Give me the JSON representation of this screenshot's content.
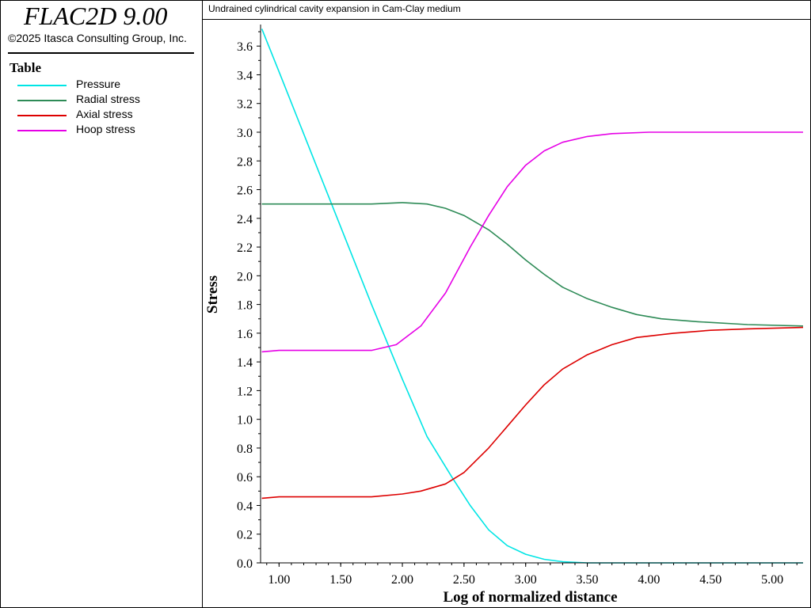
{
  "app": {
    "title": "FLAC2D 9.00",
    "copyright": "©2025 Itasca Consulting Group, Inc."
  },
  "legend": {
    "title": "Table",
    "items": [
      {
        "label": "Pressure",
        "color": "#00e5e5"
      },
      {
        "label": "Radial stress",
        "color": "#2e8b57"
      },
      {
        "label": "Axial stress",
        "color": "#dd0000"
      },
      {
        "label": "Hoop stress",
        "color": "#e600e6"
      }
    ]
  },
  "chart_data": {
    "type": "line",
    "title": "Undrained cylindrical cavity expansion in Cam-Clay medium",
    "xlabel": "Log of normalized distance",
    "ylabel": "Stress",
    "xlim": [
      0.85,
      5.25
    ],
    "ylim": [
      0.0,
      3.75
    ],
    "xticks": [
      "1.00",
      "1.50",
      "2.00",
      "2.50",
      "3.00",
      "3.50",
      "4.00",
      "4.50",
      "5.00"
    ],
    "yticks": [
      "0.0",
      "0.2",
      "0.4",
      "0.6",
      "0.8",
      "1.0",
      "1.2",
      "1.4",
      "1.6",
      "1.8",
      "2.0",
      "2.2",
      "2.4",
      "2.6",
      "2.8",
      "3.0",
      "3.2",
      "3.4",
      "3.6"
    ],
    "grid": false,
    "series": [
      {
        "name": "Pressure",
        "color": "#00e5e5",
        "points": [
          [
            0.86,
            3.72
          ],
          [
            1.0,
            3.42
          ],
          [
            1.25,
            2.88
          ],
          [
            1.5,
            2.34
          ],
          [
            1.75,
            1.8
          ],
          [
            2.0,
            1.28
          ],
          [
            2.2,
            0.88
          ],
          [
            2.4,
            0.6
          ],
          [
            2.55,
            0.4
          ],
          [
            2.7,
            0.23
          ],
          [
            2.85,
            0.12
          ],
          [
            3.0,
            0.06
          ],
          [
            3.15,
            0.025
          ],
          [
            3.3,
            0.008
          ],
          [
            3.5,
            0.0
          ],
          [
            4.0,
            0.0
          ],
          [
            4.5,
            0.0
          ],
          [
            5.25,
            0.0
          ]
        ]
      },
      {
        "name": "Radial stress",
        "color": "#2e8b57",
        "points": [
          [
            0.86,
            2.5
          ],
          [
            1.0,
            2.5
          ],
          [
            1.25,
            2.5
          ],
          [
            1.5,
            2.5
          ],
          [
            1.75,
            2.5
          ],
          [
            2.0,
            2.51
          ],
          [
            2.2,
            2.5
          ],
          [
            2.35,
            2.47
          ],
          [
            2.5,
            2.42
          ],
          [
            2.7,
            2.32
          ],
          [
            2.85,
            2.22
          ],
          [
            3.0,
            2.11
          ],
          [
            3.15,
            2.01
          ],
          [
            3.3,
            1.92
          ],
          [
            3.5,
            1.84
          ],
          [
            3.7,
            1.78
          ],
          [
            3.9,
            1.73
          ],
          [
            4.1,
            1.7
          ],
          [
            4.4,
            1.68
          ],
          [
            4.8,
            1.66
          ],
          [
            5.25,
            1.65
          ]
        ]
      },
      {
        "name": "Axial stress",
        "color": "#dd0000",
        "points": [
          [
            0.86,
            0.45
          ],
          [
            1.0,
            0.46
          ],
          [
            1.25,
            0.46
          ],
          [
            1.5,
            0.46
          ],
          [
            1.75,
            0.46
          ],
          [
            2.0,
            0.48
          ],
          [
            2.15,
            0.5
          ],
          [
            2.35,
            0.55
          ],
          [
            2.5,
            0.63
          ],
          [
            2.7,
            0.8
          ],
          [
            2.85,
            0.95
          ],
          [
            3.0,
            1.1
          ],
          [
            3.15,
            1.24
          ],
          [
            3.3,
            1.35
          ],
          [
            3.5,
            1.45
          ],
          [
            3.7,
            1.52
          ],
          [
            3.9,
            1.57
          ],
          [
            4.2,
            1.6
          ],
          [
            4.5,
            1.62
          ],
          [
            4.8,
            1.63
          ],
          [
            5.25,
            1.64
          ]
        ]
      },
      {
        "name": "Hoop stress",
        "color": "#e600e6",
        "points": [
          [
            0.86,
            1.47
          ],
          [
            1.0,
            1.48
          ],
          [
            1.25,
            1.48
          ],
          [
            1.5,
            1.48
          ],
          [
            1.75,
            1.48
          ],
          [
            1.95,
            1.52
          ],
          [
            2.15,
            1.65
          ],
          [
            2.35,
            1.88
          ],
          [
            2.55,
            2.2
          ],
          [
            2.7,
            2.42
          ],
          [
            2.85,
            2.62
          ],
          [
            3.0,
            2.77
          ],
          [
            3.15,
            2.87
          ],
          [
            3.3,
            2.93
          ],
          [
            3.5,
            2.97
          ],
          [
            3.7,
            2.99
          ],
          [
            4.0,
            3.0
          ],
          [
            4.5,
            3.0
          ],
          [
            5.25,
            3.0
          ]
        ]
      }
    ]
  }
}
